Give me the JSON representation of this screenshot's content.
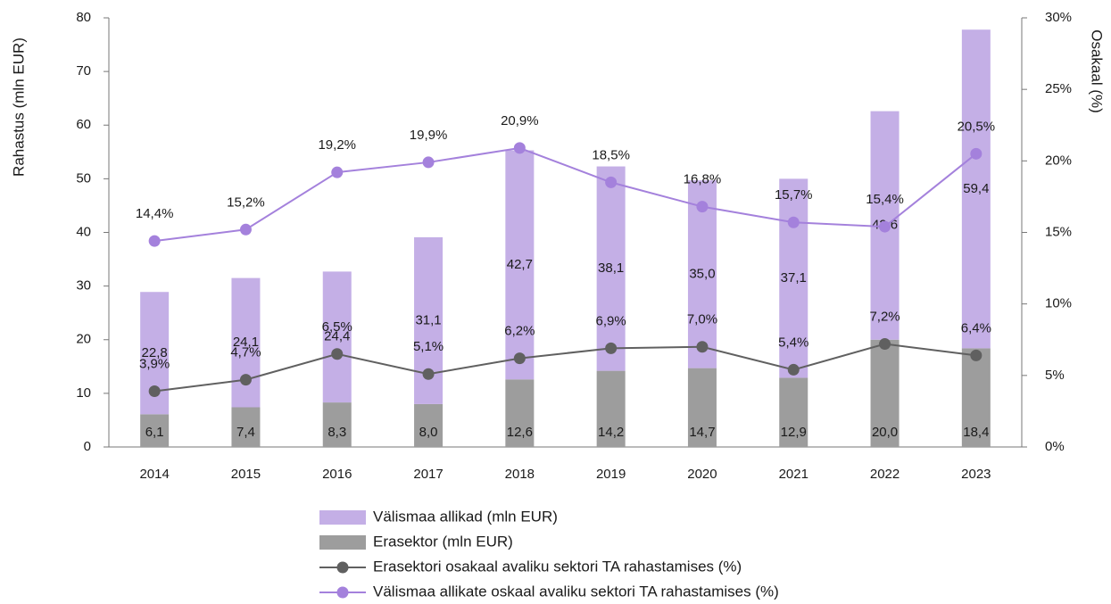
{
  "chart_data": {
    "type": "bar",
    "y_label": "Rahastus (mln EUR)",
    "y2_label": "Osakaal (%)",
    "categories": [
      "2014",
      "2015",
      "2016",
      "2017",
      "2018",
      "2019",
      "2020",
      "2021",
      "2022",
      "2023"
    ],
    "ylim": [
      0,
      80
    ],
    "yticks": [
      0,
      10,
      20,
      30,
      40,
      50,
      60,
      70,
      80
    ],
    "y2lim": [
      0,
      30
    ],
    "y2ticks": [
      {
        "value": 0,
        "label": "0%"
      },
      {
        "value": 5,
        "label": "5%"
      },
      {
        "value": 10,
        "label": "10%"
      },
      {
        "value": 15,
        "label": "15%"
      },
      {
        "value": 20,
        "label": "20%"
      },
      {
        "value": 25,
        "label": "25%"
      },
      {
        "value": 30,
        "label": "30%"
      }
    ],
    "series": [
      {
        "name": "Välismaa allikad (mln EUR)",
        "type": "bar",
        "color": "#c4afe6",
        "values": [
          22.8,
          24.1,
          24.4,
          31.1,
          42.7,
          38.1,
          35.0,
          37.1,
          42.6,
          59.4
        ],
        "value_labels": [
          "22,8",
          "24,1",
          "24,4",
          "31,1",
          "42,7",
          "38,1",
          "35,0",
          "37,1",
          "42,6",
          "59,4"
        ]
      },
      {
        "name": "Erasektor (mln EUR)",
        "type": "bar",
        "color": "#9d9d9d",
        "values": [
          6.1,
          7.4,
          8.3,
          8.0,
          12.6,
          14.2,
          14.7,
          12.9,
          20.0,
          18.4
        ],
        "value_labels": [
          "6,1",
          "7,4",
          "8,3",
          "8,0",
          "12,6",
          "14,2",
          "14,7",
          "12,9",
          "20,0",
          "18,4"
        ]
      },
      {
        "name": "Erasektori osakaal avaliku sektori TA rahastamises (%)",
        "type": "line",
        "axis": "y2",
        "color": "#606060",
        "values": [
          3.9,
          4.7,
          6.5,
          5.1,
          6.2,
          6.9,
          7.0,
          5.4,
          7.2,
          6.4
        ],
        "value_labels": [
          "3,9%",
          "4,7%",
          "6,5%",
          "5,1%",
          "6,2%",
          "6,9%",
          "7,0%",
          "5,4%",
          "7,2%",
          "6,4%"
        ]
      },
      {
        "name": "Välismaa allikate oskaal avaliku sektori TA rahastamises (%)",
        "type": "line",
        "axis": "y2",
        "color": "#a481dc",
        "values": [
          14.4,
          15.2,
          19.2,
          19.9,
          20.9,
          18.5,
          16.8,
          15.7,
          15.4,
          20.5
        ],
        "value_labels": [
          "14,4%",
          "15,2%",
          "19,2%",
          "19,9%",
          "20,9%",
          "18,5%",
          "16,8%",
          "15,7%",
          "15,4%",
          "20,5%"
        ]
      }
    ]
  }
}
